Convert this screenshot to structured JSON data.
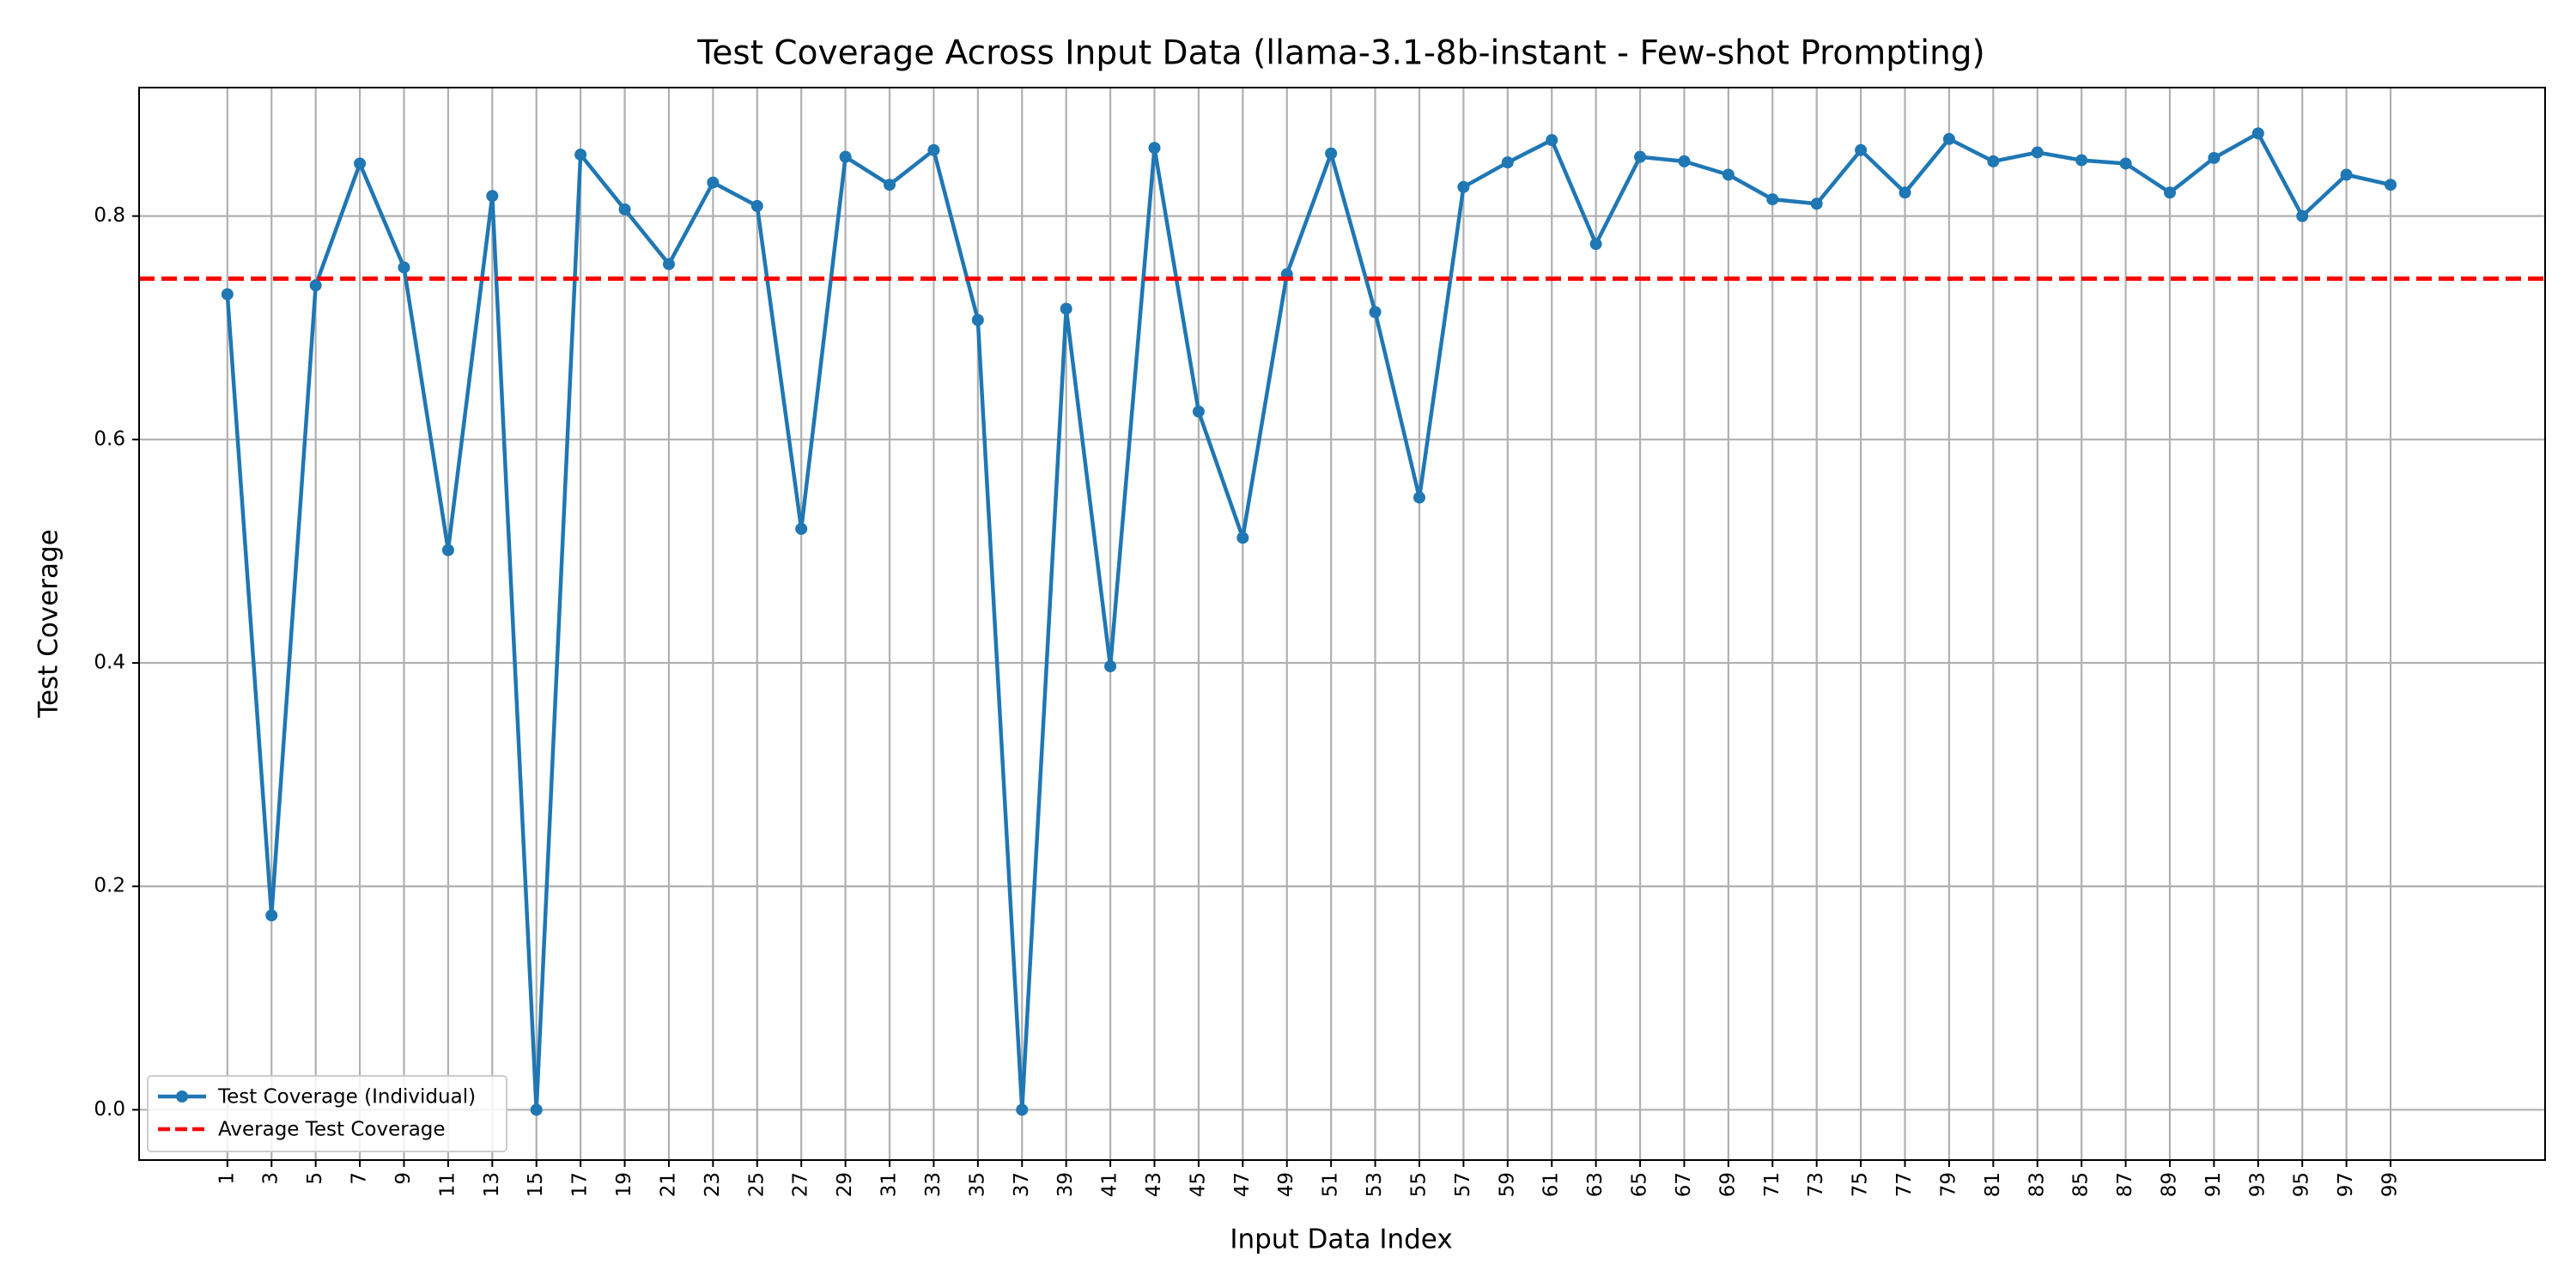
{
  "chart_data": {
    "type": "line",
    "title": "Test Coverage Across Input Data (llama-3.1-8b-instant - Few-shot Prompting)",
    "xlabel": "Input Data Index",
    "ylabel": "Test Coverage",
    "xlim": [
      -3,
      106
    ],
    "ylim": [
      -0.045,
      0.915
    ],
    "x_ticks": [
      1,
      3,
      5,
      7,
      9,
      11,
      13,
      15,
      17,
      19,
      21,
      23,
      25,
      27,
      29,
      31,
      33,
      35,
      37,
      39,
      41,
      43,
      45,
      47,
      49,
      51,
      53,
      55,
      57,
      59,
      61,
      63,
      65,
      67,
      69,
      71,
      73,
      75,
      77,
      79,
      81,
      83,
      85,
      87,
      89,
      91,
      93,
      95,
      97,
      99
    ],
    "y_ticks": [
      0.0,
      0.2,
      0.4,
      0.6,
      0.8
    ],
    "y_tick_labels": [
      "0.0",
      "0.2",
      "0.4",
      "0.6",
      "0.8"
    ],
    "grid": true,
    "legend_position": "bottom-left",
    "series": [
      {
        "name": "Test Coverage (Individual)",
        "style": "line-marker",
        "color": "#1f77b4",
        "x": [
          1,
          3,
          5,
          7,
          9,
          11,
          13,
          15,
          17,
          19,
          21,
          23,
          25,
          27,
          29,
          31,
          33,
          35,
          37,
          39,
          41,
          43,
          45,
          47,
          49,
          51,
          53,
          55,
          57,
          59,
          61,
          63,
          65,
          67,
          69,
          71,
          73,
          75,
          77,
          79,
          81,
          83,
          85,
          87,
          89,
          91,
          93,
          95,
          97,
          99
        ],
        "values": [
          0.73,
          0.174,
          0.738,
          0.847,
          0.754,
          0.501,
          0.818,
          0.0,
          0.855,
          0.806,
          0.757,
          0.83,
          0.809,
          0.52,
          0.853,
          0.828,
          0.859,
          0.707,
          0.0,
          0.717,
          0.397,
          0.861,
          0.625,
          0.512,
          0.748,
          0.856,
          0.714,
          0.548,
          0.826,
          0.848,
          0.868,
          0.775,
          0.853,
          0.849,
          0.837,
          0.815,
          0.811,
          0.859,
          0.821,
          0.869,
          0.849,
          0.857,
          0.85,
          0.847,
          0.821,
          0.852,
          0.874,
          0.8,
          0.837,
          0.828
        ]
      },
      {
        "name": "Average Test Coverage",
        "style": "dashed-hline",
        "color": "#ff0000",
        "value": 0.744
      }
    ]
  }
}
